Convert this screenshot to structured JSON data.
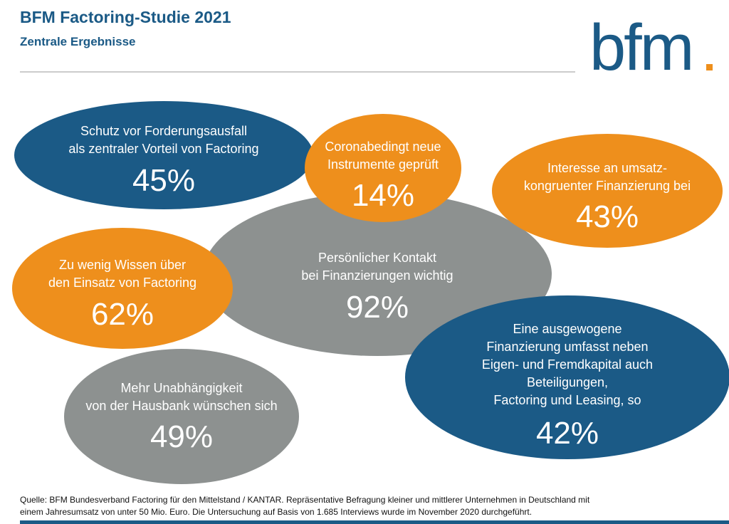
{
  "header": {
    "title": "BFM Factoring-Studie 2021",
    "subtitle": "Zentrale Ergebnisse",
    "logo": "bfm"
  },
  "bubbles": [
    {
      "lines": [
        "Schutz vor Forderungsausfall",
        "als zentraler Vorteil von Factoring"
      ],
      "value": "45%"
    },
    {
      "lines": [
        "Coronabedingt neue",
        "Instrumente geprüft"
      ],
      "value": "14%"
    },
    {
      "lines": [
        "Interesse an umsatz-",
        "kongruenter Finanzierung bei"
      ],
      "value": "43%"
    },
    {
      "lines": [
        "Persönlicher Kontakt",
        "bei Finanzierungen wichtig"
      ],
      "value": "92%"
    },
    {
      "lines": [
        "Zu wenig Wissen über",
        "den Einsatz von Factoring"
      ],
      "value": "62%"
    },
    {
      "lines": [
        "Eine ausgewogene",
        "Finanzierung umfasst neben",
        "Eigen- und Fremdkapital auch",
        "Beteiligungen,",
        "Factoring und Leasing, so"
      ],
      "value": "42%"
    },
    {
      "lines": [
        "Mehr Unabhängigkeit",
        "von der Hausbank wünschen sich"
      ],
      "value": "49%"
    }
  ],
  "footer": {
    "lines": [
      "Quelle: BFM Bundesverband Factoring für den Mittelstand / KANTAR. Repräsentative Befragung kleiner und mittlerer Unternehmen in Deutschland mit",
      "einem Jahresumsatz von unter 50 Mio. Euro. Die Untersuchung auf Basis von 1.685 Interviews wurde im November 2020 durchgeführt."
    ]
  }
}
